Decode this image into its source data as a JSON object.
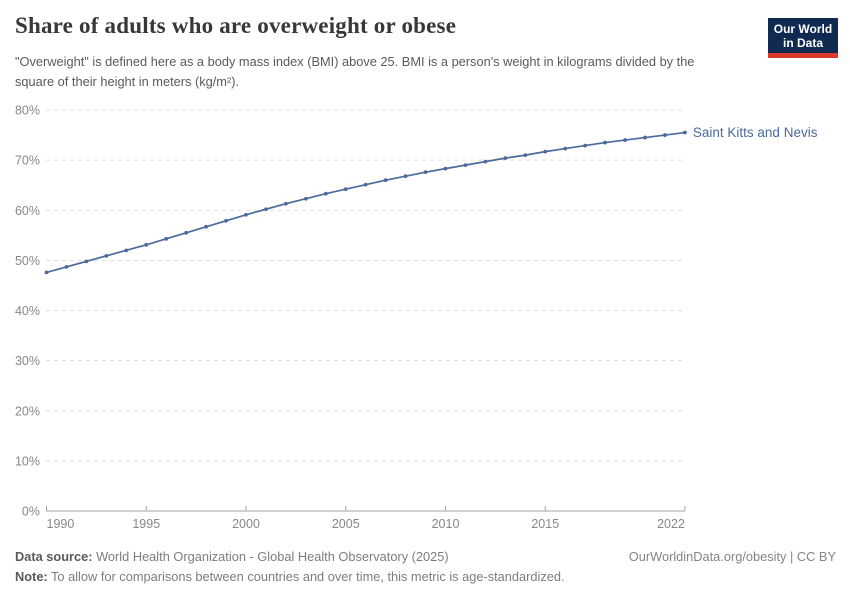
{
  "header": {
    "title": "Share of adults who are overweight or obese",
    "subtitle": "\"Overweight\" is defined here as a body mass index (BMI) above 25. BMI is a person's weight in kilograms divided by the square of their height in meters (kg/m²)."
  },
  "logo": {
    "line1": "Our World",
    "line2": "in Data"
  },
  "chart_data": {
    "type": "line",
    "title": "Share of adults who are overweight or obese",
    "xlabel": "",
    "ylabel": "",
    "ylim": [
      0,
      80
    ],
    "yticks": [
      0,
      10,
      20,
      30,
      40,
      50,
      60,
      70,
      80
    ],
    "ytick_format": "{v}%",
    "xticks": [
      1990,
      1995,
      2000,
      2005,
      2010,
      2015,
      2022
    ],
    "grid": "horizontal-dashed",
    "legend_position": "end-of-line-label",
    "x": [
      1990,
      1991,
      1992,
      1993,
      1994,
      1995,
      1996,
      1997,
      1998,
      1999,
      2000,
      2001,
      2002,
      2003,
      2004,
      2005,
      2006,
      2007,
      2008,
      2009,
      2010,
      2011,
      2012,
      2013,
      2014,
      2015,
      2016,
      2017,
      2018,
      2019,
      2020,
      2021,
      2022
    ],
    "series": [
      {
        "name": "Saint Kitts and Nevis",
        "color": "#4c6a9c",
        "values": [
          47.6,
          48.7,
          49.8,
          50.9,
          52.0,
          53.1,
          54.3,
          55.5,
          56.7,
          57.9,
          59.1,
          60.2,
          61.3,
          62.3,
          63.3,
          64.2,
          65.1,
          66.0,
          66.8,
          67.6,
          68.3,
          69.0,
          69.7,
          70.4,
          71.0,
          71.7,
          72.3,
          72.9,
          73.5,
          74.0,
          74.5,
          75.0,
          75.5
        ]
      }
    ]
  },
  "footer": {
    "source_label": "Data source:",
    "source_text": " World Health Organization - Global Health Observatory (2025)",
    "note_label": "Note:",
    "note_text": " To allow for comparisons between countries and over time, this metric is age-standardized.",
    "right_text": "OurWorldinData.org/obesity | CC BY"
  },
  "colors": {
    "line": "#4c6a9c",
    "grid": "#dddddd",
    "axis": "#a5a5a5",
    "tick_label": "#878787",
    "logo_bg": "#102a52",
    "logo_accent": "#dc3a2d"
  }
}
